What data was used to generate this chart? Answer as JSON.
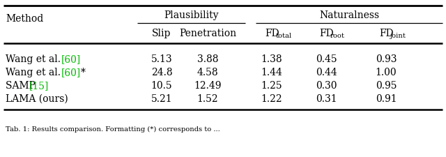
{
  "headers_group1": "Plausibility",
  "headers_group2": "Naturalness",
  "col_subheaders": [
    "Slip",
    "Penetration",
    "FD_total",
    "FD_root",
    "FD_joint"
  ],
  "methods": [
    {
      "text": "Wang et al. ",
      "citation": "[60]",
      "suffix": ""
    },
    {
      "text": "Wang et al. ",
      "citation": "[60]",
      "suffix": "*"
    },
    {
      "text": "SAMP ",
      "citation": "[15]",
      "suffix": ""
    },
    {
      "text": "LAMA (ours)",
      "citation": "",
      "suffix": ""
    }
  ],
  "data": [
    [
      "5.13",
      "3.88",
      "1.38",
      "0.45",
      "0.93"
    ],
    [
      "24.8",
      "4.58",
      "1.44",
      "0.44",
      "1.00"
    ],
    [
      "10.5",
      "12.49",
      "1.25",
      "0.30",
      "0.95"
    ],
    [
      "5.21",
      "1.52",
      "1.22",
      "0.31",
      "0.91"
    ]
  ],
  "green": "#00bb00",
  "bg_color": "white",
  "font_size": 10.0,
  "caption": "Tab. 1: Results comparison. Formatting (*) corresponds to ..."
}
